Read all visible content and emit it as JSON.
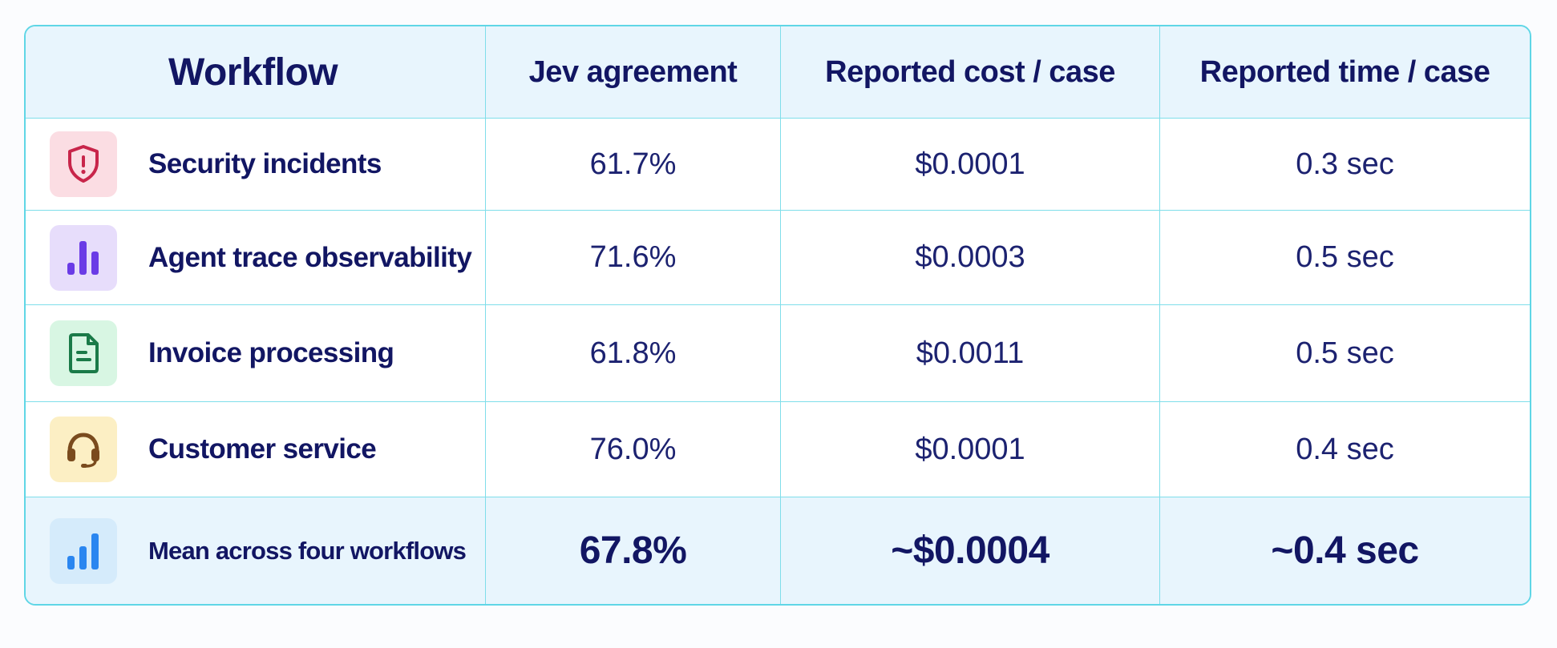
{
  "table": {
    "headers": [
      "Workflow",
      "Jev agreement",
      "Reported cost / case",
      "Reported time / case"
    ],
    "rows": [
      {
        "icon": "shield-alert-icon",
        "icon_bg": "#fbdde3",
        "icon_color": "#c8254a",
        "workflow": "Security incidents",
        "agreement": "61.7%",
        "cost": "$0.0001",
        "time": "0.3 sec"
      },
      {
        "icon": "bar-chart-icon",
        "icon_bg": "#e7ddfb",
        "icon_color": "#6a3be6",
        "workflow": "Agent trace observability",
        "agreement": "71.6%",
        "cost": "$0.0003",
        "time": "0.5 sec"
      },
      {
        "icon": "document-icon",
        "icon_bg": "#d8f6e3",
        "icon_color": "#1a7a48",
        "workflow": "Invoice processing",
        "agreement": "61.8%",
        "cost": "$0.0011",
        "time": "0.5 sec"
      },
      {
        "icon": "headset-icon",
        "icon_bg": "#fcefc4",
        "icon_color": "#7a4b1e",
        "workflow": "Customer service",
        "agreement": "76.0%",
        "cost": "$0.0001",
        "time": "0.4 sec"
      }
    ],
    "summary": {
      "icon": "bar-chart-icon",
      "icon_bg": "#d5ebfb",
      "icon_color": "#2a86f0",
      "workflow": "Mean across four workflows",
      "agreement": "67.8%",
      "cost": "~$0.0004",
      "time": "~0.4 sec"
    }
  }
}
